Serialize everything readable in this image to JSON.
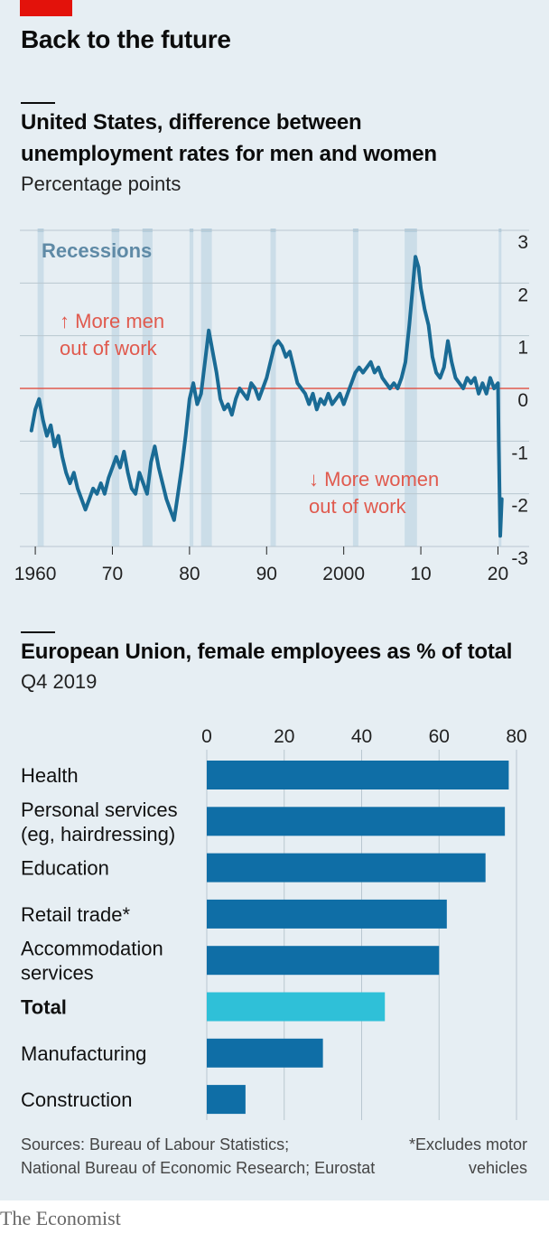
{
  "header": {
    "title": "Back to the future"
  },
  "chart1": {
    "title_line1": "United States, difference between",
    "title_line2": "unemployment rates for men and women",
    "unit": "Percentage points",
    "recessions_label": "Recessions",
    "annotation_up_line1": "↑ More men",
    "annotation_up_line2": "out of work",
    "annotation_down_line1": "↓ More women",
    "annotation_down_line2": "out of work"
  },
  "chart2": {
    "title": "European Union, female employees as % of total",
    "unit": "Q4 2019"
  },
  "footer": {
    "source_line1": "Sources: Bureau of Labour Statistics;",
    "source_line2": "National Bureau of Economic Research; Eurostat",
    "note_line1": "*Excludes motor",
    "note_line2": "vehicles",
    "brand": "The Economist"
  },
  "colors": {
    "line": "#1a6b95",
    "zero_line": "#e05a4e",
    "recession": "#cbdde8",
    "bar": "#0f6ea6",
    "bar_highlight": "#2fc0d8",
    "annotation": "#e05a4e",
    "recession_label": "#5f8aa6"
  },
  "chart_data": [
    {
      "type": "line",
      "title": "United States, difference between unemployment rates for men and women",
      "ylabel": "Percentage points",
      "ylim": [
        -3,
        3
      ],
      "xlim": [
        1958,
        2021
      ],
      "yticks": [
        3,
        2,
        1,
        0,
        -1,
        -2,
        -3
      ],
      "ytick_labels": [
        "3",
        "2",
        "1",
        "0",
        "-1",
        "-2",
        "-3"
      ],
      "xticks": [
        1960,
        1970,
        1980,
        1990,
        2000,
        2010,
        2020
      ],
      "xtick_labels": [
        "1960",
        "70",
        "80",
        "90",
        "2000",
        "10",
        "20"
      ],
      "recessions": [
        [
          1960.3,
          1961.1
        ],
        [
          1969.9,
          1970.9
        ],
        [
          1973.9,
          1975.2
        ],
        [
          1980.0,
          1980.5
        ],
        [
          1981.5,
          1982.9
        ],
        [
          1990.5,
          1991.2
        ],
        [
          2001.2,
          2001.9
        ],
        [
          2007.9,
          2009.5
        ],
        [
          2020.1,
          2020.4
        ]
      ],
      "series": [
        {
          "values": [
            [
              1959.5,
              -0.8
            ],
            [
              1960.0,
              -0.4
            ],
            [
              1960.5,
              -0.2
            ],
            [
              1961.0,
              -0.6
            ],
            [
              1961.5,
              -0.9
            ],
            [
              1962.0,
              -0.7
            ],
            [
              1962.5,
              -1.1
            ],
            [
              1963.0,
              -0.9
            ],
            [
              1963.5,
              -1.3
            ],
            [
              1964.0,
              -1.6
            ],
            [
              1964.5,
              -1.8
            ],
            [
              1965.0,
              -1.6
            ],
            [
              1965.5,
              -1.9
            ],
            [
              1966.0,
              -2.1
            ],
            [
              1966.5,
              -2.3
            ],
            [
              1967.0,
              -2.1
            ],
            [
              1967.5,
              -1.9
            ],
            [
              1968.0,
              -2.0
            ],
            [
              1968.5,
              -1.8
            ],
            [
              1969.0,
              -2.0
            ],
            [
              1969.5,
              -1.7
            ],
            [
              1970.0,
              -1.5
            ],
            [
              1970.5,
              -1.3
            ],
            [
              1971.0,
              -1.5
            ],
            [
              1971.5,
              -1.2
            ],
            [
              1972.0,
              -1.6
            ],
            [
              1972.5,
              -1.9
            ],
            [
              1973.0,
              -2.0
            ],
            [
              1973.5,
              -1.6
            ],
            [
              1974.0,
              -1.8
            ],
            [
              1974.5,
              -2.0
            ],
            [
              1975.0,
              -1.4
            ],
            [
              1975.5,
              -1.1
            ],
            [
              1976.0,
              -1.5
            ],
            [
              1976.5,
              -1.8
            ],
            [
              1977.0,
              -2.1
            ],
            [
              1977.5,
              -2.3
            ],
            [
              1978.0,
              -2.5
            ],
            [
              1978.5,
              -2.0
            ],
            [
              1979.0,
              -1.5
            ],
            [
              1979.5,
              -0.9
            ],
            [
              1980.0,
              -0.2
            ],
            [
              1980.5,
              0.1
            ],
            [
              1981.0,
              -0.3
            ],
            [
              1981.5,
              -0.1
            ],
            [
              1982.0,
              0.5
            ],
            [
              1982.5,
              1.1
            ],
            [
              1983.0,
              0.7
            ],
            [
              1983.5,
              0.3
            ],
            [
              1984.0,
              -0.2
            ],
            [
              1984.5,
              -0.4
            ],
            [
              1985.0,
              -0.3
            ],
            [
              1985.5,
              -0.5
            ],
            [
              1986.0,
              -0.2
            ],
            [
              1986.5,
              0.0
            ],
            [
              1987.0,
              -0.1
            ],
            [
              1987.5,
              -0.2
            ],
            [
              1988.0,
              0.1
            ],
            [
              1988.5,
              0.0
            ],
            [
              1989.0,
              -0.2
            ],
            [
              1989.5,
              0.0
            ],
            [
              1990.0,
              0.2
            ],
            [
              1990.5,
              0.5
            ],
            [
              1991.0,
              0.8
            ],
            [
              1991.5,
              0.9
            ],
            [
              1992.0,
              0.8
            ],
            [
              1992.5,
              0.6
            ],
            [
              1993.0,
              0.7
            ],
            [
              1993.5,
              0.4
            ],
            [
              1994.0,
              0.1
            ],
            [
              1994.5,
              0.0
            ],
            [
              1995.0,
              -0.1
            ],
            [
              1995.5,
              -0.3
            ],
            [
              1996.0,
              -0.1
            ],
            [
              1996.5,
              -0.4
            ],
            [
              1997.0,
              -0.2
            ],
            [
              1997.5,
              -0.3
            ],
            [
              1998.0,
              -0.1
            ],
            [
              1998.5,
              -0.3
            ],
            [
              1999.0,
              -0.2
            ],
            [
              1999.5,
              -0.1
            ],
            [
              2000.0,
              -0.3
            ],
            [
              2000.5,
              -0.1
            ],
            [
              2001.0,
              0.1
            ],
            [
              2001.5,
              0.3
            ],
            [
              2002.0,
              0.4
            ],
            [
              2002.5,
              0.3
            ],
            [
              2003.0,
              0.4
            ],
            [
              2003.5,
              0.5
            ],
            [
              2004.0,
              0.3
            ],
            [
              2004.5,
              0.4
            ],
            [
              2005.0,
              0.2
            ],
            [
              2005.5,
              0.1
            ],
            [
              2006.0,
              0.0
            ],
            [
              2006.5,
              0.1
            ],
            [
              2007.0,
              0.0
            ],
            [
              2007.5,
              0.2
            ],
            [
              2008.0,
              0.5
            ],
            [
              2008.5,
              1.2
            ],
            [
              2009.0,
              2.0
            ],
            [
              2009.3,
              2.5
            ],
            [
              2009.7,
              2.3
            ],
            [
              2010.0,
              1.9
            ],
            [
              2010.5,
              1.5
            ],
            [
              2011.0,
              1.2
            ],
            [
              2011.5,
              0.6
            ],
            [
              2012.0,
              0.3
            ],
            [
              2012.5,
              0.2
            ],
            [
              2013.0,
              0.4
            ],
            [
              2013.5,
              0.9
            ],
            [
              2014.0,
              0.5
            ],
            [
              2014.5,
              0.2
            ],
            [
              2015.0,
              0.1
            ],
            [
              2015.5,
              0.0
            ],
            [
              2016.0,
              0.2
            ],
            [
              2016.5,
              0.1
            ],
            [
              2017.0,
              0.2
            ],
            [
              2017.5,
              -0.1
            ],
            [
              2018.0,
              0.1
            ],
            [
              2018.5,
              -0.1
            ],
            [
              2019.0,
              0.2
            ],
            [
              2019.5,
              0.0
            ],
            [
              2020.0,
              0.1
            ],
            [
              2020.1,
              -1.0
            ],
            [
              2020.3,
              -2.8
            ],
            [
              2020.5,
              -2.1
            ]
          ]
        }
      ]
    },
    {
      "type": "bar",
      "orientation": "horizontal",
      "title": "European Union, female employees as % of total",
      "subtitle": "Q4 2019",
      "xlim": [
        0,
        80
      ],
      "xticks": [
        0,
        20,
        40,
        60,
        80
      ],
      "categories": [
        {
          "label": [
            "Health"
          ],
          "value": 78,
          "bold": false,
          "highlight": false
        },
        {
          "label": [
            "Personal services",
            "(eg, hairdressing)"
          ],
          "value": 77,
          "bold": false,
          "highlight": false
        },
        {
          "label": [
            "Education"
          ],
          "value": 72,
          "bold": false,
          "highlight": false
        },
        {
          "label": [
            "Retail trade*"
          ],
          "value": 62,
          "bold": false,
          "highlight": false
        },
        {
          "label": [
            "Accommodation",
            "services"
          ],
          "value": 60,
          "bold": false,
          "highlight": false
        },
        {
          "label": [
            "Total"
          ],
          "value": 46,
          "bold": true,
          "highlight": true
        },
        {
          "label": [
            "Manufacturing"
          ],
          "value": 30,
          "bold": false,
          "highlight": false
        },
        {
          "label": [
            "Construction"
          ],
          "value": 10,
          "bold": false,
          "highlight": false
        }
      ]
    }
  ]
}
